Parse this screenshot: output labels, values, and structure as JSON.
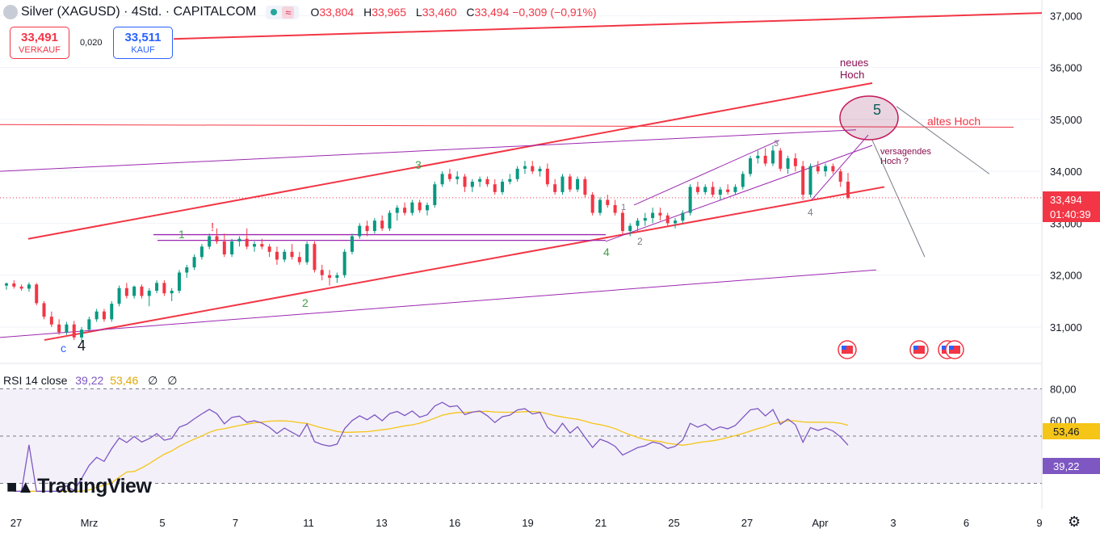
{
  "header": {
    "title": "Silver (XAGUSD) · 4Std. · CAPITALCOM",
    "wave_icon": "≈",
    "ohlc": [
      {
        "k": "O",
        "v": "33,804"
      },
      {
        "k": "H",
        "v": "33,965"
      },
      {
        "k": "L",
        "v": "33,460"
      },
      {
        "k": "C",
        "v": "33,494 −0,309 (−0,91%)"
      }
    ]
  },
  "trade": {
    "sell_price": "33,491",
    "sell_label": "VERKAUF",
    "buy_price": "33,511",
    "buy_label": "KAUF",
    "spread": "0,020"
  },
  "rsi": {
    "label": "RSI 14 close",
    "value": "39,22",
    "ma_value": "53,46",
    "null_1": "∅",
    "null_2": "∅",
    "axis_labels": [
      "80,00",
      "60,00"
    ],
    "top": 80,
    "mid": 50,
    "bottom": 20
  },
  "brand": "TradingView",
  "colors": {
    "up": "#089981",
    "down": "#f23645",
    "trend": "#f23645",
    "channel": "#9c27b0",
    "rsi": "#7e57c2",
    "rsi_ma": "#f5c518",
    "annot": "#880e4f"
  },
  "chart_data": {
    "type": "candlestick",
    "title": "Silver (XAGUSD) · 4Std. · CAPITALCOM",
    "ylim": [
      30.3,
      37.3
    ],
    "y_ticks": [
      "37,000",
      "36,000",
      "35,000",
      "34,000",
      "33,000",
      "32,000",
      "31,000"
    ],
    "x_ticks": [
      "27",
      "Mrz",
      "5",
      "7",
      "11",
      "13",
      "16",
      "19",
      "21",
      "25",
      "27",
      "Apr",
      "3",
      "6",
      "9"
    ],
    "last_price": "33,494",
    "countdown": "01:40:39",
    "candles": [
      [
        31.8,
        31.86,
        31.72,
        31.84
      ],
      [
        31.84,
        31.9,
        31.74,
        31.78
      ],
      [
        31.78,
        31.82,
        31.7,
        31.74
      ],
      [
        31.74,
        31.86,
        31.68,
        31.82
      ],
      [
        31.82,
        31.85,
        31.42,
        31.46
      ],
      [
        31.46,
        31.5,
        31.15,
        31.2
      ],
      [
        31.2,
        31.3,
        31.0,
        31.05
      ],
      [
        31.05,
        31.15,
        30.85,
        30.9
      ],
      [
        30.9,
        31.1,
        30.85,
        31.05
      ],
      [
        31.05,
        31.12,
        30.75,
        30.8
      ],
      [
        30.8,
        31.0,
        30.72,
        30.95
      ],
      [
        30.95,
        31.2,
        30.9,
        31.15
      ],
      [
        31.15,
        31.35,
        31.1,
        31.3
      ],
      [
        31.3,
        31.35,
        31.1,
        31.15
      ],
      [
        31.15,
        31.5,
        31.1,
        31.45
      ],
      [
        31.45,
        31.8,
        31.4,
        31.75
      ],
      [
        31.75,
        31.85,
        31.55,
        31.6
      ],
      [
        31.6,
        31.8,
        31.55,
        31.78
      ],
      [
        31.78,
        31.82,
        31.55,
        31.6
      ],
      [
        31.6,
        31.75,
        31.4,
        31.7
      ],
      [
        31.7,
        31.9,
        31.65,
        31.85
      ],
      [
        31.85,
        31.9,
        31.6,
        31.65
      ],
      [
        31.65,
        31.75,
        31.5,
        31.7
      ],
      [
        31.7,
        32.1,
        31.65,
        32.05
      ],
      [
        32.05,
        32.2,
        31.95,
        32.15
      ],
      [
        32.15,
        32.4,
        32.1,
        32.35
      ],
      [
        32.35,
        32.6,
        32.3,
        32.55
      ],
      [
        32.55,
        32.8,
        32.5,
        32.75
      ],
      [
        32.75,
        32.9,
        32.6,
        32.65
      ],
      [
        32.65,
        32.8,
        32.35,
        32.4
      ],
      [
        32.4,
        32.7,
        32.35,
        32.65
      ],
      [
        32.65,
        32.75,
        32.55,
        32.7
      ],
      [
        32.7,
        32.9,
        32.5,
        32.55
      ],
      [
        32.55,
        32.65,
        32.45,
        32.6
      ],
      [
        32.6,
        32.7,
        32.5,
        32.55
      ],
      [
        32.55,
        32.6,
        32.35,
        32.45
      ],
      [
        32.45,
        32.55,
        32.2,
        32.3
      ],
      [
        32.3,
        32.5,
        32.25,
        32.45
      ],
      [
        32.45,
        32.6,
        32.3,
        32.35
      ],
      [
        32.35,
        32.45,
        32.2,
        32.25
      ],
      [
        32.25,
        32.65,
        32.2,
        32.6
      ],
      [
        32.6,
        32.65,
        32.05,
        32.1
      ],
      [
        32.1,
        32.2,
        31.9,
        32.0
      ],
      [
        32.0,
        32.1,
        31.8,
        31.95
      ],
      [
        31.95,
        32.05,
        31.85,
        32.0
      ],
      [
        32.0,
        32.5,
        31.95,
        32.45
      ],
      [
        32.45,
        32.8,
        32.4,
        32.75
      ],
      [
        32.75,
        33.0,
        32.7,
        32.95
      ],
      [
        32.95,
        33.05,
        32.75,
        32.85
      ],
      [
        32.85,
        33.1,
        32.8,
        33.05
      ],
      [
        33.05,
        33.15,
        32.85,
        32.9
      ],
      [
        32.9,
        33.25,
        32.85,
        33.2
      ],
      [
        33.2,
        33.35,
        33.05,
        33.3
      ],
      [
        33.3,
        33.4,
        33.15,
        33.2
      ],
      [
        33.2,
        33.45,
        33.15,
        33.4
      ],
      [
        33.4,
        33.45,
        33.2,
        33.25
      ],
      [
        33.25,
        33.4,
        33.15,
        33.35
      ],
      [
        33.35,
        33.8,
        33.3,
        33.75
      ],
      [
        33.75,
        34.0,
        33.7,
        33.95
      ],
      [
        33.95,
        34.05,
        33.8,
        33.85
      ],
      [
        33.85,
        34.0,
        33.75,
        33.9
      ],
      [
        33.9,
        33.95,
        33.6,
        33.7
      ],
      [
        33.7,
        33.85,
        33.6,
        33.8
      ],
      [
        33.8,
        33.9,
        33.7,
        33.85
      ],
      [
        33.85,
        33.9,
        33.7,
        33.75
      ],
      [
        33.75,
        33.85,
        33.55,
        33.6
      ],
      [
        33.6,
        33.85,
        33.55,
        33.8
      ],
      [
        33.8,
        33.95,
        33.75,
        33.85
      ],
      [
        33.85,
        34.1,
        33.8,
        34.05
      ],
      [
        34.05,
        34.2,
        33.95,
        34.1
      ],
      [
        34.1,
        34.2,
        33.95,
        34.0
      ],
      [
        34.0,
        34.1,
        33.9,
        34.05
      ],
      [
        34.05,
        34.15,
        33.7,
        33.75
      ],
      [
        33.75,
        33.85,
        33.55,
        33.6
      ],
      [
        33.6,
        33.95,
        33.55,
        33.9
      ],
      [
        33.9,
        33.95,
        33.6,
        33.65
      ],
      [
        33.65,
        33.9,
        33.6,
        33.85
      ],
      [
        33.85,
        33.9,
        33.5,
        33.55
      ],
      [
        33.55,
        33.6,
        33.15,
        33.2
      ],
      [
        33.2,
        33.5,
        33.15,
        33.45
      ],
      [
        33.45,
        33.55,
        33.3,
        33.35
      ],
      [
        33.35,
        33.45,
        33.15,
        33.2
      ],
      [
        33.2,
        33.25,
        32.8,
        32.85
      ],
      [
        32.85,
        33.0,
        32.75,
        32.95
      ],
      [
        32.95,
        33.1,
        32.85,
        33.05
      ],
      [
        33.05,
        33.2,
        32.95,
        33.1
      ],
      [
        33.1,
        33.3,
        33.0,
        33.2
      ],
      [
        33.2,
        33.3,
        33.05,
        33.15
      ],
      [
        33.15,
        33.2,
        32.95,
        33.0
      ],
      [
        33.0,
        33.1,
        32.9,
        33.05
      ],
      [
        33.05,
        33.25,
        33.0,
        33.2
      ],
      [
        33.2,
        33.75,
        33.15,
        33.7
      ],
      [
        33.7,
        33.8,
        33.55,
        33.6
      ],
      [
        33.6,
        33.75,
        33.55,
        33.7
      ],
      [
        33.7,
        33.8,
        33.5,
        33.55
      ],
      [
        33.55,
        33.7,
        33.45,
        33.65
      ],
      [
        33.65,
        33.75,
        33.55,
        33.6
      ],
      [
        33.6,
        33.75,
        33.55,
        33.7
      ],
      [
        33.7,
        34.0,
        33.65,
        33.95
      ],
      [
        33.95,
        34.3,
        33.9,
        34.25
      ],
      [
        34.25,
        34.4,
        34.15,
        34.3
      ],
      [
        34.3,
        34.45,
        34.1,
        34.15
      ],
      [
        34.15,
        34.5,
        34.1,
        34.4
      ],
      [
        34.4,
        34.45,
        34.0,
        34.05
      ],
      [
        34.05,
        34.3,
        33.95,
        34.25
      ],
      [
        34.25,
        34.35,
        34.0,
        34.1
      ],
      [
        34.1,
        34.2,
        33.45,
        33.55
      ],
      [
        33.55,
        34.15,
        33.5,
        34.1
      ],
      [
        34.1,
        34.2,
        33.95,
        34.0
      ],
      [
        34.0,
        34.15,
        33.9,
        34.1
      ],
      [
        34.1,
        34.15,
        33.95,
        34.0
      ],
      [
        34.0,
        34.05,
        33.7,
        33.8
      ],
      [
        33.8,
        33.97,
        33.46,
        33.49
      ]
    ],
    "annotations": [
      "neues",
      "Hoch",
      "altes Hoch",
      "versagendes",
      "Hoch ?",
      "5",
      "3",
      "1",
      "2",
      "4",
      "!",
      "c",
      "4",
      "3",
      "4",
      "1",
      "2"
    ]
  }
}
